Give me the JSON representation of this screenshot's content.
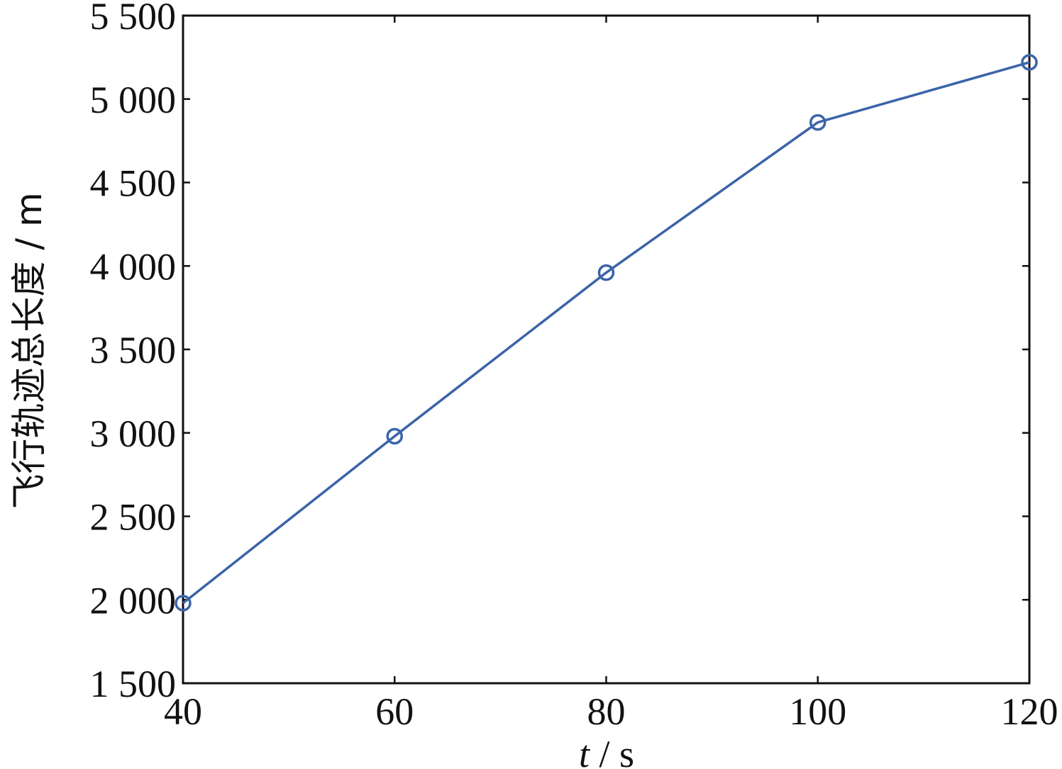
{
  "chart_data": {
    "type": "line",
    "title": "",
    "xlabel": {
      "var": "t",
      "unit": " / s"
    },
    "ylabel": "飞行轨迹总长度 / m",
    "x": [
      40,
      60,
      80,
      100,
      120
    ],
    "xlim": [
      40,
      120
    ],
    "ylim": [
      1500,
      5500
    ],
    "xticks": [
      40,
      60,
      80,
      100,
      120
    ],
    "xtick_labels": [
      "40",
      "60",
      "80",
      "100",
      "120"
    ],
    "yticks": [
      1500,
      2000,
      2500,
      3000,
      3500,
      4000,
      4500,
      5000,
      5500
    ],
    "ytick_labels": [
      "1 500",
      "2 000",
      "2 500",
      "3 000",
      "3 500",
      "4 000",
      "4 500",
      "5 000",
      "5 500"
    ],
    "series": [
      {
        "values": [
          1980,
          2980,
          3960,
          4860,
          5220
        ],
        "color": "#3b64a8",
        "marker": "circle-open"
      }
    ],
    "grid": false,
    "legend": "none"
  }
}
